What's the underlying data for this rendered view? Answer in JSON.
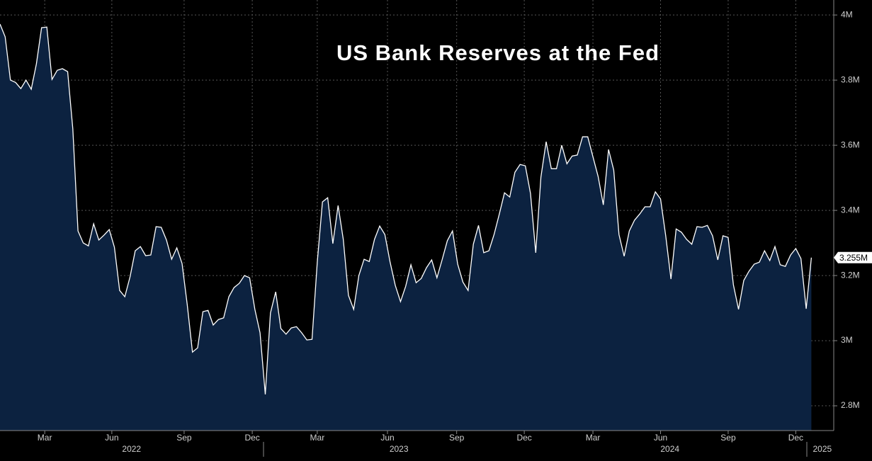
{
  "chart_data": {
    "type": "area",
    "title": "US Bank Reserves at the Fed",
    "values": [
      3.972,
      3.933,
      3.8,
      3.793,
      3.774,
      3.8,
      3.772,
      3.85,
      3.961,
      3.963,
      3.802,
      3.83,
      3.835,
      3.826,
      3.65,
      3.337,
      3.3,
      3.291,
      3.359,
      3.309,
      3.324,
      3.341,
      3.287,
      3.154,
      3.135,
      3.196,
      3.276,
      3.289,
      3.261,
      3.263,
      3.35,
      3.348,
      3.309,
      3.25,
      3.285,
      3.237,
      3.111,
      2.965,
      2.978,
      3.089,
      3.093,
      3.048,
      3.065,
      3.07,
      3.135,
      3.163,
      3.176,
      3.2,
      3.193,
      3.096,
      3.024,
      2.835,
      3.085,
      3.15,
      3.037,
      3.02,
      3.039,
      3.043,
      3.024,
      3.002,
      3.004,
      3.241,
      3.426,
      3.439,
      3.298,
      3.415,
      3.311,
      3.139,
      3.096,
      3.2,
      3.25,
      3.243,
      3.311,
      3.352,
      3.326,
      3.241,
      3.17,
      3.12,
      3.167,
      3.233,
      3.178,
      3.191,
      3.224,
      3.248,
      3.193,
      3.248,
      3.307,
      3.337,
      3.235,
      3.18,
      3.154,
      3.296,
      3.354,
      3.27,
      3.276,
      3.326,
      3.389,
      3.454,
      3.441,
      3.517,
      3.541,
      3.537,
      3.452,
      3.27,
      3.502,
      3.611,
      3.528,
      3.528,
      3.6,
      3.543,
      3.567,
      3.57,
      3.626,
      3.626,
      3.565,
      3.504,
      3.417,
      3.587,
      3.524,
      3.326,
      3.259,
      3.337,
      3.37,
      3.389,
      3.411,
      3.411,
      3.457,
      3.435,
      3.322,
      3.189,
      3.343,
      3.333,
      3.311,
      3.296,
      3.35,
      3.348,
      3.354,
      3.322,
      3.248,
      3.322,
      3.317,
      3.172,
      3.096,
      3.185,
      3.213,
      3.235,
      3.241,
      3.276,
      3.246,
      3.289,
      3.233,
      3.228,
      3.263,
      3.283,
      3.252,
      3.098,
      3.255
    ],
    "color": "#0c2240",
    "line_color": "#ffffff",
    "current_value": {
      "value": 3.255,
      "label": "3.255M"
    },
    "xlim": [
      0,
      160.3
    ],
    "xticks": [
      {
        "value": 8.6,
        "label": "Mar"
      },
      {
        "value": 21.5,
        "label": "Jun"
      },
      {
        "value": 35.4,
        "label": "Sep"
      },
      {
        "value": 48.5,
        "label": "Dec"
      },
      {
        "value": 61,
        "label": "Mar"
      },
      {
        "value": 74.5,
        "label": "Jun"
      },
      {
        "value": 87.8,
        "label": "Sep"
      },
      {
        "value": 100.8,
        "label": "Dec"
      },
      {
        "value": 114,
        "label": "Mar"
      },
      {
        "value": 127,
        "label": "Jun"
      },
      {
        "value": 140,
        "label": "Sep"
      },
      {
        "value": 153,
        "label": "Dec"
      }
    ],
    "year_ticks": [
      {
        "value": 25.3,
        "label": "2022"
      },
      {
        "value": 76.7,
        "label": "2023"
      },
      {
        "value": 128.8,
        "label": "2024"
      },
      {
        "value": 158.1,
        "label": "2025"
      }
    ],
    "ylim": [
      2.724,
      4.046
    ],
    "yticks": [
      {
        "value": 2.8,
        "label": "2.8M"
      },
      {
        "value": 3,
        "label": "3M"
      },
      {
        "value": 3.2,
        "label": "3.2M"
      },
      {
        "value": 3.4,
        "label": "3.4M"
      },
      {
        "value": 3.6,
        "label": "3.6M"
      },
      {
        "value": 3.8,
        "label": "3.8M"
      },
      {
        "value": 4,
        "label": "4M"
      }
    ],
    "grid": true
  }
}
